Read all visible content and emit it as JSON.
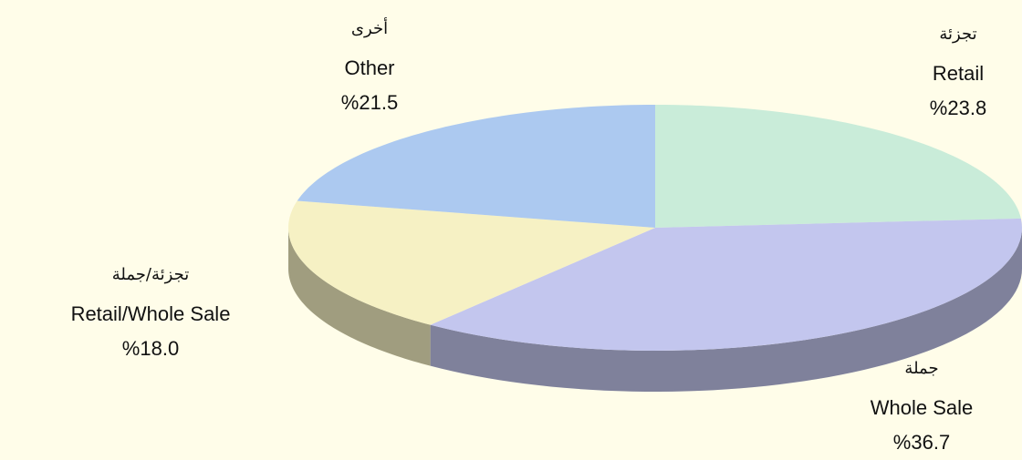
{
  "chart_data": {
    "type": "pie",
    "categories": [
      "Retail",
      "Whole Sale",
      "Retail/Whole Sale",
      "Other"
    ],
    "categories_ar": [
      "تجزئة",
      "جملة",
      "تجزئة/جملة",
      "أخرى"
    ],
    "values": [
      23.8,
      36.7,
      18.0,
      21.5
    ],
    "value_labels": [
      "%23.8",
      "%36.7",
      "%18.0",
      "%21.5"
    ],
    "colors": [
      "#c9ecd9",
      "#c3c6ee",
      "#f6f1c4",
      "#acc9f0"
    ]
  }
}
